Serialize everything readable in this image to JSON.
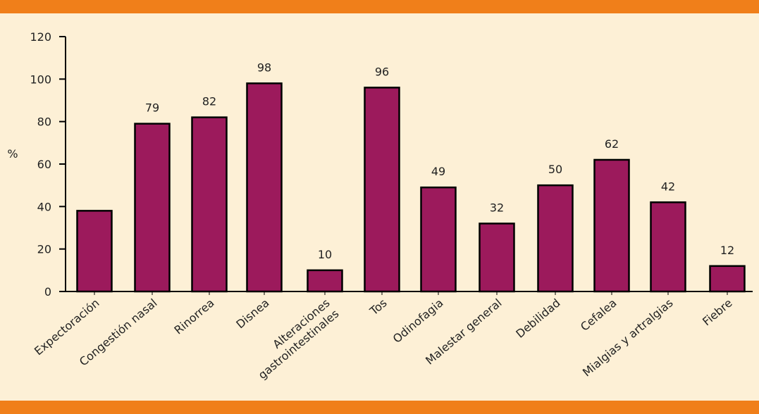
{
  "chart_data": {
    "type": "bar",
    "ylabel": "%",
    "ylim": [
      0,
      120
    ],
    "yticks": [
      0,
      20,
      40,
      60,
      80,
      100,
      120
    ],
    "grid": false,
    "categories": [
      "Expectoración",
      "Congestión nasal",
      "Rinorrea",
      "Disnea",
      "Alteraciones gastrointestinales",
      "Tos",
      "Odinofagia",
      "Malestar general",
      "Debilidad",
      "Cefalea",
      "Mialgias y artralgias",
      "Fiebre"
    ],
    "values": [
      38,
      79,
      82,
      98,
      10,
      96,
      49,
      32,
      50,
      62,
      42,
      12
    ],
    "value_labels": [
      "",
      "79",
      "82",
      "98",
      "10",
      "96",
      "49",
      "32",
      "50",
      "62",
      "42",
      "12"
    ],
    "colors": {
      "bar": "#9c1a5c",
      "bar_edge": "#000000",
      "background": "#fdf0d6",
      "band": "#f07f1a"
    }
  }
}
